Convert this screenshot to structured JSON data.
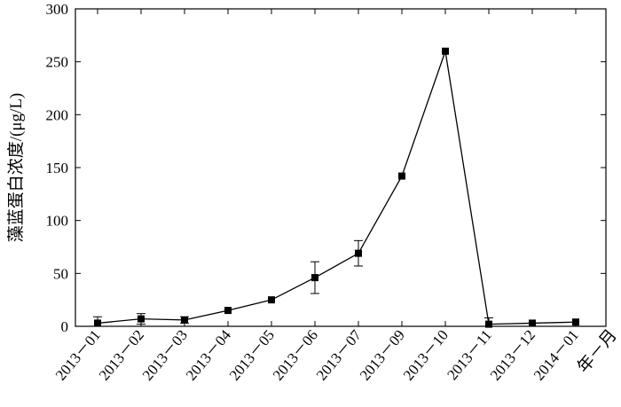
{
  "chart_data": {
    "type": "line",
    "xlabel": "年－月",
    "ylabel": "藻蓝蛋白浓度/(μg/L)",
    "categories": [
      "2013－01",
      "2013－02",
      "2013－03",
      "2013－04",
      "2013－05",
      "2013－06",
      "2013－07",
      "2013－09",
      "2013－10",
      "2013－11",
      "2013－12",
      "2014－01"
    ],
    "series": [
      {
        "values": [
          3,
          7,
          6,
          15,
          25,
          46,
          69,
          142,
          260,
          2,
          3,
          4
        ],
        "error": [
          6,
          5,
          3,
          0,
          0,
          15,
          12,
          0,
          0,
          6,
          0,
          0
        ],
        "color": "#000000",
        "marker": "square"
      }
    ],
    "ylim": [
      0,
      300
    ],
    "yticks": [
      0,
      50,
      100,
      150,
      200,
      250,
      300
    ],
    "grid": false,
    "legend": "none"
  }
}
